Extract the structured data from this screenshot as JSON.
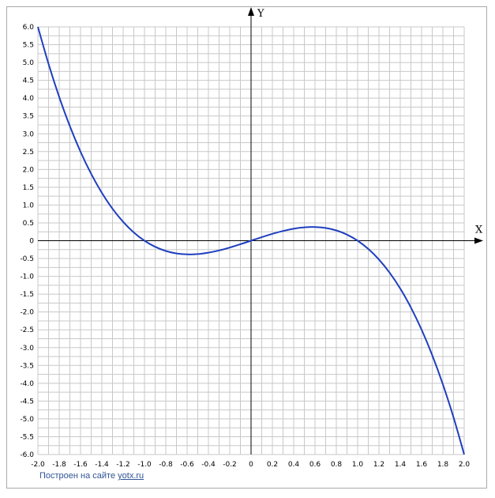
{
  "chart_data": {
    "type": "line",
    "xlabel": "X",
    "ylabel": "Y",
    "xlim": [
      -2.0,
      2.0
    ],
    "ylim": [
      -6.0,
      6.0
    ],
    "grid": true,
    "xticks": [
      "-2.0",
      "-1.8",
      "-1.6",
      "-1.4",
      "-1.2",
      "-1.0",
      "-0.8",
      "-0.6",
      "-0.4",
      "-0.2",
      "0",
      "0.2",
      "0.4",
      "0.6",
      "0.8",
      "1.0",
      "1.2",
      "1.4",
      "1.6",
      "1.8",
      "2.0"
    ],
    "yticks": [
      "6.0",
      "5.5",
      "5.0",
      "4.5",
      "4.0",
      "3.5",
      "3.0",
      "2.5",
      "2.0",
      "1.5",
      "1.0",
      "0.5",
      "0",
      "-0.5",
      "-1.0",
      "-1.5",
      "-2.0",
      "-2.5",
      "-3.0",
      "-3.5",
      "-4.0",
      "-4.5",
      "-5.0",
      "-5.5",
      "-6.0"
    ],
    "series": [
      {
        "color": "#1f3fbf",
        "x": [
          -2.0,
          -1.9,
          -1.8,
          -1.7,
          -1.6,
          -1.5,
          -1.4,
          -1.3,
          -1.2,
          -1.1,
          -1.0,
          -0.9,
          -0.8,
          -0.7,
          -0.6,
          -0.5,
          -0.4,
          -0.3,
          -0.2,
          -0.1,
          0.0,
          0.1,
          0.2,
          0.3,
          0.4,
          0.5,
          0.6,
          0.7,
          0.8,
          0.9,
          1.0,
          1.1,
          1.2,
          1.3,
          1.4,
          1.5,
          1.6,
          1.7,
          1.8,
          1.9,
          2.0
        ],
        "y": [
          6.0,
          4.959,
          4.032,
          3.213,
          2.496,
          1.875,
          1.344,
          0.897,
          0.528,
          0.231,
          0.0,
          -0.171,
          -0.288,
          -0.357,
          -0.384,
          -0.375,
          -0.336,
          -0.273,
          -0.192,
          -0.099,
          0.0,
          0.099,
          0.192,
          0.273,
          0.336,
          0.375,
          0.384,
          0.357,
          0.288,
          0.171,
          0.0,
          -0.231,
          -0.528,
          -0.897,
          -1.344,
          -1.875,
          -2.496,
          -3.213,
          -4.032,
          -4.959,
          -6.0
        ]
      }
    ]
  },
  "credit": {
    "prefix": "Построен на сайте",
    "link": "yotx.ru"
  }
}
